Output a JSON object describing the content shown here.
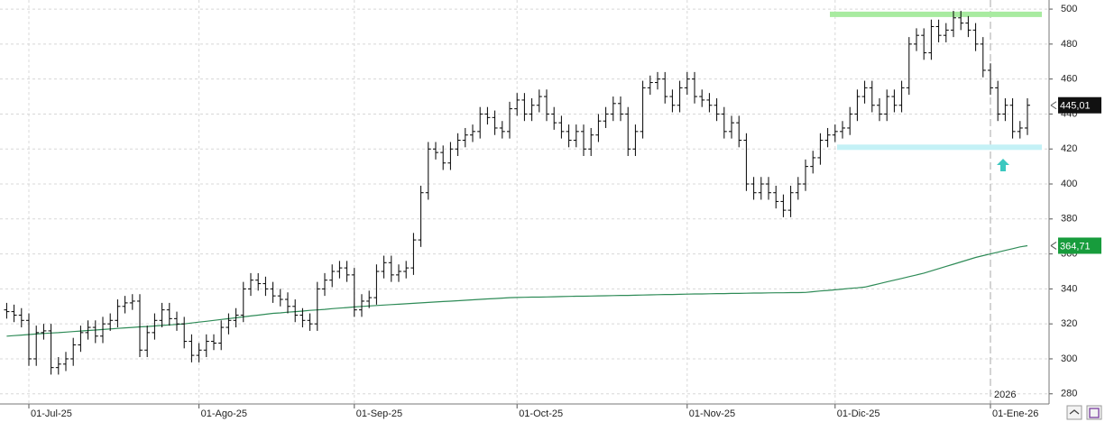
{
  "chart_data": {
    "type": "ohlc",
    "categories": [
      null,
      null,
      null,
      "01-Jul-25",
      null,
      null,
      null,
      null,
      null,
      null,
      null,
      null,
      null,
      null,
      null,
      null,
      null,
      null,
      null,
      null,
      null,
      null,
      null,
      null,
      null,
      null,
      "01-Ago-25",
      null,
      null,
      null,
      null,
      null,
      null,
      null,
      null,
      null,
      null,
      null,
      null,
      null,
      null,
      null,
      null,
      null,
      null,
      null,
      null,
      "01-Sep-25",
      null,
      null,
      null,
      null,
      null,
      null,
      null,
      null,
      null,
      null,
      null,
      null,
      null,
      null,
      null,
      null,
      null,
      null,
      null,
      null,
      null,
      "01-Oct-25",
      null,
      null,
      null,
      null,
      null,
      null,
      null,
      null,
      null,
      null,
      null,
      null,
      null,
      null,
      null,
      null,
      null,
      null,
      null,
      null,
      null,
      null,
      "01-Nov-25",
      null,
      null,
      null,
      null,
      null,
      null,
      null,
      null,
      null,
      null,
      null,
      null,
      null,
      null,
      null,
      null,
      null,
      null,
      null,
      "01-Dic-25",
      null,
      null,
      null,
      null,
      null,
      null,
      null,
      null,
      null,
      null,
      null,
      null,
      null,
      null,
      null,
      null,
      null,
      null,
      null,
      null,
      "01-Ene-26",
      null,
      null,
      null,
      null,
      null
    ],
    "open": [
      328,
      327,
      325,
      322,
      300,
      315,
      316,
      295,
      297,
      300,
      308,
      315,
      318,
      313,
      320,
      322,
      330,
      332,
      333,
      305,
      315,
      322,
      328,
      323,
      320,
      310,
      302,
      305,
      310,
      309,
      318,
      322,
      325,
      340,
      345,
      343,
      340,
      336,
      334,
      330,
      325,
      322,
      320,
      340,
      345,
      350,
      352,
      348,
      328,
      333,
      335,
      350,
      355,
      348,
      350,
      352,
      368,
      395,
      420,
      418,
      412,
      420,
      425,
      428,
      430,
      440,
      438,
      432,
      430,
      443,
      448,
      440,
      445,
      450,
      440,
      435,
      430,
      425,
      430,
      420,
      428,
      436,
      440,
      446,
      440,
      420,
      430,
      455,
      458,
      460,
      450,
      445,
      455,
      460,
      450,
      448,
      445,
      440,
      430,
      435,
      425,
      400,
      395,
      400,
      395,
      390,
      385,
      395,
      400,
      410,
      415,
      425,
      428,
      430,
      432,
      440,
      450,
      455,
      445,
      440,
      450,
      445,
      455,
      480,
      485,
      475,
      490,
      485,
      488,
      495,
      492,
      488,
      480,
      465,
      455,
      440,
      445,
      430,
      432
    ],
    "high": [
      332,
      331,
      329,
      326,
      319,
      320,
      320,
      301,
      304,
      312,
      319,
      322,
      322,
      324,
      326,
      334,
      336,
      337,
      337,
      319,
      326,
      332,
      332,
      327,
      324,
      314,
      309,
      314,
      314,
      322,
      326,
      329,
      344,
      349,
      349,
      347,
      344,
      340,
      338,
      334,
      329,
      326,
      344,
      349,
      354,
      356,
      356,
      352,
      337,
      339,
      354,
      359,
      359,
      354,
      356,
      372,
      399,
      424,
      424,
      422,
      424,
      429,
      432,
      434,
      444,
      444,
      442,
      436,
      447,
      452,
      452,
      449,
      454,
      454,
      444,
      439,
      434,
      434,
      434,
      432,
      440,
      444,
      450,
      450,
      444,
      434,
      459,
      462,
      464,
      464,
      454,
      459,
      464,
      464,
      454,
      452,
      449,
      444,
      439,
      439,
      429,
      404,
      404,
      404,
      399,
      394,
      399,
      404,
      414,
      419,
      429,
      432,
      434,
      436,
      444,
      454,
      459,
      459,
      449,
      454,
      454,
      459,
      484,
      489,
      489,
      494,
      494,
      492,
      499,
      499,
      496,
      492,
      484,
      469,
      459,
      449,
      449,
      436,
      449
    ],
    "low": [
      323,
      321,
      318,
      296,
      296,
      311,
      291,
      291,
      293,
      296,
      304,
      311,
      309,
      309,
      316,
      318,
      326,
      328,
      301,
      301,
      311,
      318,
      319,
      316,
      306,
      298,
      298,
      301,
      305,
      305,
      314,
      318,
      321,
      336,
      339,
      336,
      332,
      330,
      326,
      321,
      318,
      316,
      316,
      336,
      341,
      346,
      344,
      324,
      324,
      329,
      331,
      346,
      344,
      344,
      346,
      348,
      364,
      391,
      414,
      408,
      408,
      416,
      421,
      424,
      426,
      434,
      428,
      426,
      426,
      439,
      436,
      436,
      441,
      436,
      431,
      426,
      421,
      421,
      416,
      416,
      424,
      432,
      436,
      436,
      416,
      416,
      426,
      451,
      454,
      446,
      441,
      441,
      451,
      446,
      444,
      441,
      436,
      426,
      426,
      421,
      396,
      391,
      391,
      391,
      386,
      381,
      381,
      391,
      396,
      406,
      411,
      421,
      424,
      426,
      428,
      436,
      446,
      441,
      436,
      436,
      441,
      441,
      451,
      476,
      471,
      471,
      481,
      481,
      484,
      488,
      484,
      476,
      461,
      451,
      436,
      436,
      426,
      426,
      428
    ],
    "close": [
      327,
      325,
      322,
      300,
      315,
      316,
      295,
      297,
      300,
      308,
      315,
      318,
      313,
      320,
      322,
      330,
      332,
      333,
      305,
      315,
      322,
      328,
      323,
      320,
      310,
      302,
      305,
      310,
      309,
      318,
      322,
      325,
      340,
      345,
      343,
      340,
      336,
      334,
      330,
      325,
      322,
      320,
      340,
      345,
      350,
      352,
      348,
      328,
      333,
      335,
      350,
      355,
      348,
      350,
      352,
      368,
      395,
      420,
      418,
      412,
      420,
      425,
      428,
      430,
      440,
      438,
      432,
      430,
      443,
      448,
      440,
      445,
      450,
      440,
      435,
      430,
      425,
      430,
      420,
      428,
      436,
      440,
      446,
      440,
      420,
      430,
      455,
      458,
      460,
      450,
      445,
      455,
      460,
      450,
      448,
      445,
      440,
      430,
      435,
      425,
      400,
      395,
      400,
      395,
      390,
      385,
      395,
      400,
      410,
      415,
      425,
      428,
      430,
      432,
      440,
      450,
      455,
      445,
      440,
      450,
      445,
      455,
      480,
      485,
      475,
      490,
      485,
      488,
      495,
      492,
      488,
      480,
      465,
      455,
      440,
      445,
      430,
      432,
      445.01
    ],
    "color": "#000000",
    "ma": {
      "color": "#2e8b57",
      "values": [
        313,
        313.3,
        313.6,
        313.9,
        314.2,
        314.5,
        314.8,
        315,
        315.3,
        315.6,
        315.9,
        316.2,
        316.5,
        316.8,
        317.1,
        317.4,
        317.7,
        318,
        318.3,
        318.5,
        318.8,
        319.1,
        319.4,
        319.7,
        320,
        320.5,
        321,
        321.5,
        322,
        322.5,
        323,
        323.5,
        324,
        324.5,
        325,
        325.5,
        326,
        326.3,
        326.7,
        327,
        327.3,
        327.7,
        328,
        328.3,
        328.7,
        329,
        329.3,
        329.7,
        330,
        330.25,
        330.5,
        330.75,
        331,
        331.25,
        331.5,
        331.75,
        332,
        332.25,
        332.5,
        332.75,
        333,
        333.25,
        333.5,
        333.75,
        334,
        334.25,
        334.5,
        334.75,
        335,
        335.1,
        335.2,
        335.3,
        335.3,
        335.4,
        335.5,
        335.6,
        335.7,
        335.8,
        335.8,
        335.9,
        336,
        336.1,
        336.2,
        336.3,
        336.3,
        336.4,
        336.5,
        336.6,
        336.7,
        336.8,
        336.8,
        336.9,
        337,
        337.1,
        337.1,
        337.2,
        337.3,
        337.3,
        337.4,
        337.4,
        337.5,
        337.6,
        337.6,
        337.7,
        337.8,
        337.8,
        337.9,
        337.9,
        338,
        338.4,
        338.8,
        339.1,
        339.5,
        339.9,
        340.3,
        340.6,
        341,
        342,
        343,
        344,
        345,
        346,
        347,
        348,
        349,
        350.3,
        351.6,
        352.9,
        354.1,
        355.4,
        356.7,
        358,
        359,
        360,
        361,
        362,
        363,
        364,
        364.71
      ]
    },
    "last_price": {
      "value": 445.01,
      "label": "445,01"
    },
    "ma_price": {
      "value": 364.71,
      "label": "364,71"
    },
    "levels": [
      {
        "value": 497,
        "color": "#a8eba0"
      },
      {
        "value": 421,
        "color": "#c4f1f6"
      }
    ],
    "year_label": "2026",
    "ylim": [
      274.2,
      505.2
    ],
    "yticks": [
      280,
      300,
      320,
      340,
      360,
      380,
      400,
      420,
      440,
      460,
      480,
      500
    ],
    "grid": true
  }
}
